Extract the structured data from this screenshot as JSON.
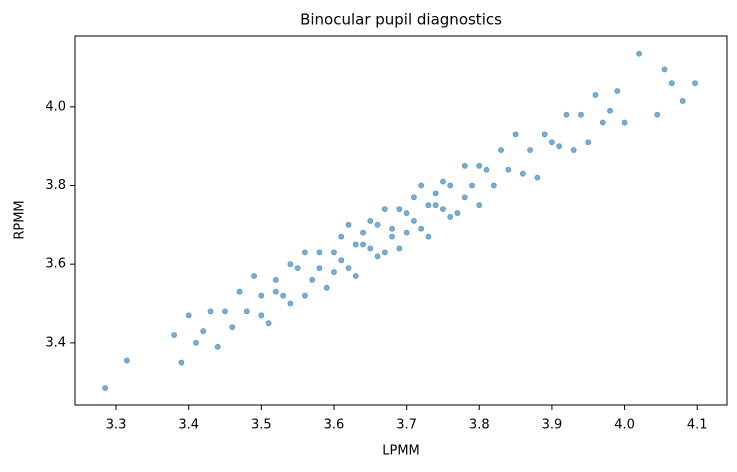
{
  "chart_data": {
    "type": "scatter",
    "title": "Binocular pupil diagnostics",
    "xlabel": "LPMM",
    "ylabel": "RPMM",
    "color": "#1f77b4",
    "xlim": [
      3.2435,
      4.141
    ],
    "ylim": [
      3.242,
      4.18
    ],
    "xticks": [
      3.3,
      3.4,
      3.5,
      3.6,
      3.7,
      3.8,
      3.9,
      {
        "value": 4,
        "label": "4.0"
      },
      4.1
    ],
    "yticks": [
      3.4,
      3.6,
      3.8,
      {
        "value": 4,
        "label": "4.0"
      }
    ],
    "x": [
      3.38,
      3.39,
      3.4,
      3.41,
      3.42,
      3.43,
      3.44,
      3.45,
      3.46,
      3.47,
      3.48,
      3.49,
      3.5,
      3.5,
      3.51,
      3.52,
      3.52,
      3.53,
      3.54,
      3.54,
      3.55,
      3.56,
      3.56,
      3.57,
      3.58,
      3.58,
      3.59,
      3.6,
      3.6,
      3.61,
      3.61,
      3.62,
      3.62,
      3.63,
      3.63,
      3.64,
      3.64,
      3.65,
      3.65,
      3.66,
      3.66,
      3.67,
      3.67,
      3.68,
      3.68,
      3.69,
      3.69,
      3.7,
      3.7,
      3.71,
      3.71,
      3.72,
      3.72,
      3.73,
      3.73,
      3.74,
      3.74,
      3.75,
      3.75,
      3.76,
      3.76,
      3.77,
      3.78,
      3.78,
      3.79,
      3.8,
      3.8,
      3.81,
      3.82,
      3.83,
      3.84,
      3.85,
      3.86,
      3.87,
      3.88,
      3.89,
      3.9,
      3.91,
      3.92,
      3.93,
      3.94,
      3.95,
      3.96,
      3.97,
      3.98,
      3.99,
      4.0,
      3.285,
      3.315,
      4.02,
      4.055,
      4.08,
      4.097,
      4.065,
      4.045
    ],
    "y": [
      3.42,
      3.35,
      3.47,
      3.4,
      3.43,
      3.48,
      3.39,
      3.48,
      3.44,
      3.53,
      3.48,
      3.57,
      3.47,
      3.52,
      3.45,
      3.56,
      3.53,
      3.52,
      3.6,
      3.5,
      3.59,
      3.52,
      3.63,
      3.56,
      3.59,
      3.63,
      3.54,
      3.63,
      3.58,
      3.67,
      3.61,
      3.7,
      3.59,
      3.65,
      3.57,
      3.68,
      3.65,
      3.64,
      3.71,
      3.62,
      3.7,
      3.63,
      3.74,
      3.67,
      3.69,
      3.74,
      3.64,
      3.73,
      3.68,
      3.77,
      3.71,
      3.8,
      3.69,
      3.75,
      3.67,
      3.78,
      3.75,
      3.74,
      3.81,
      3.72,
      3.8,
      3.73,
      3.85,
      3.77,
      3.8,
      3.85,
      3.75,
      3.84,
      3.8,
      3.89,
      3.84,
      3.93,
      3.83,
      3.89,
      3.82,
      3.93,
      3.91,
      3.9,
      3.98,
      3.89,
      3.98,
      3.91,
      4.03,
      3.96,
      3.99,
      4.04,
      3.96,
      3.285,
      3.355,
      4.135,
      4.095,
      4.015,
      4.06,
      4.06,
      3.98
    ]
  }
}
